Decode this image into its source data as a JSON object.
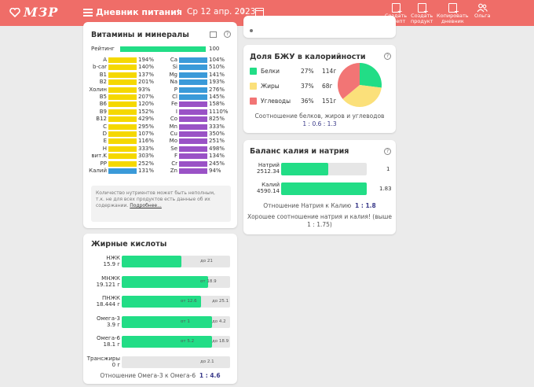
{
  "header": {
    "logo_text": "МЗР",
    "title": "Дневник питания",
    "date": "Ср 12 апр. 2023",
    "actions": [
      {
        "label_line1": "Создать",
        "label_line2": "рецепт"
      },
      {
        "label_line1": "Создать",
        "label_line2": "продукт"
      },
      {
        "label_line1": "Копировать",
        "label_line2": "дневник"
      },
      {
        "label_line1": "Ольга",
        "label_line2": ""
      }
    ],
    "bar_color": "#ef6d68"
  },
  "vitamins": {
    "title": "Витамины и минералы",
    "rating_label": "Рейтинг",
    "rating_value": "100",
    "left": [
      {
        "name": "A",
        "value": "194%",
        "color": "#f5d800"
      },
      {
        "name": "b-car",
        "value": "140%",
        "color": "#f5d800"
      },
      {
        "name": "B1",
        "value": "137%",
        "color": "#f5d800"
      },
      {
        "name": "B2",
        "value": "201%",
        "color": "#f5d800"
      },
      {
        "name": "Холин",
        "value": "93%",
        "color": "#f5d800"
      },
      {
        "name": "B5",
        "value": "207%",
        "color": "#f5d800"
      },
      {
        "name": "B6",
        "value": "120%",
        "color": "#f5d800"
      },
      {
        "name": "B9",
        "value": "152%",
        "color": "#f5d800"
      },
      {
        "name": "B12",
        "value": "429%",
        "color": "#f5d800"
      },
      {
        "name": "C",
        "value": "295%",
        "color": "#f5d800"
      },
      {
        "name": "D",
        "value": "107%",
        "color": "#f5d800"
      },
      {
        "name": "E",
        "value": "116%",
        "color": "#f5d800"
      },
      {
        "name": "H",
        "value": "333%",
        "color": "#f5d800"
      },
      {
        "name": "вит.K",
        "value": "303%",
        "color": "#f5d800"
      },
      {
        "name": "PP",
        "value": "252%",
        "color": "#f5d800"
      },
      {
        "name": "Калий",
        "value": "131%",
        "color": "#3a9ad9"
      }
    ],
    "right": [
      {
        "name": "Ca",
        "value": "104%",
        "color": "#3a9ad9"
      },
      {
        "name": "Si",
        "value": "510%",
        "color": "#3a9ad9"
      },
      {
        "name": "Mg",
        "value": "141%",
        "color": "#3a9ad9"
      },
      {
        "name": "Na",
        "value": "193%",
        "color": "#3a9ad9"
      },
      {
        "name": "P",
        "value": "276%",
        "color": "#3a9ad9"
      },
      {
        "name": "Cl",
        "value": "145%",
        "color": "#3a9ad9"
      },
      {
        "name": "Fe",
        "value": "158%",
        "color": "#9a52c6"
      },
      {
        "name": "I",
        "value": "1110%",
        "color": "#9a52c6"
      },
      {
        "name": "Co",
        "value": "825%",
        "color": "#9a52c6"
      },
      {
        "name": "Mn",
        "value": "333%",
        "color": "#9a52c6"
      },
      {
        "name": "Cu",
        "value": "350%",
        "color": "#9a52c6"
      },
      {
        "name": "Mo",
        "value": "251%",
        "color": "#9a52c6"
      },
      {
        "name": "Se",
        "value": "498%",
        "color": "#9a52c6"
      },
      {
        "name": "F",
        "value": "134%",
        "color": "#9a52c6"
      },
      {
        "name": "Cr",
        "value": "245%",
        "color": "#9a52c6"
      },
      {
        "name": "Zn",
        "value": "94%",
        "color": "#9a52c6"
      }
    ],
    "note_line1": "Количество нутриентов может быть неполным,",
    "note_line2": "т.к. не для всех продуктов есть данные об их",
    "note_line3": "содержании.",
    "note_link": "Подробнее..."
  },
  "fatty_acids": {
    "title": "Жирные кислоты",
    "rows": [
      {
        "name": "НЖК",
        "amount": "15.9 г",
        "from": "",
        "to": "до 21",
        "fill": 0.55
      },
      {
        "name": "МНЖК",
        "amount": "19.121 г",
        "from": "от 18.9",
        "to": "",
        "fill": 0.8
      },
      {
        "name": "ПНЖК",
        "amount": "18.444 г",
        "from": "от 12.6",
        "to": "до 25.1",
        "fill": 0.73
      },
      {
        "name": "Омега-3",
        "amount": "3.9 г",
        "from": "от 1",
        "to": "до 4.2",
        "fill": 0.83
      },
      {
        "name": "Омега-6",
        "amount": "18.1 г",
        "from": "от 5.2",
        "to": "до 18.9",
        "fill": 0.83
      },
      {
        "name": "Трансжиры",
        "amount": "0 г",
        "from": "",
        "to": "до 2.1",
        "fill": 0.0
      }
    ],
    "ratio_label": "Отношение Омега-3 к Омега-6",
    "ratio_value": "1 : 4.6"
  },
  "bju": {
    "title": "Доля БЖУ в калорийности",
    "items": [
      {
        "name": "Белки",
        "percent": "27%",
        "grams": "114г",
        "color": "#22dd86",
        "share": 27
      },
      {
        "name": "Жиры",
        "percent": "37%",
        "grams": "68г",
        "color": "#fbe07a",
        "share": 37
      },
      {
        "name": "Углеводы",
        "percent": "36%",
        "grams": "151г",
        "color": "#f27575",
        "share": 36
      }
    ],
    "ratio_line1": "Соотношение белков, жиров и углеводов",
    "ratio_line2": "1 : 0.6 : 1.3"
  },
  "kna": {
    "title": "Баланс калия и натрия",
    "rows": [
      {
        "name": "Натрий",
        "amount": "2512.34",
        "side_value": "1",
        "fill": 0.55
      },
      {
        "name": "Калий",
        "amount": "4590.14",
        "side_value": "1.83",
        "fill": 1.0
      }
    ],
    "ratio_label": "Отношение Натрия к Калию",
    "ratio_value": "1 : 1.8",
    "comment_line1": "Хорошее соотношение натрия и калия! (выше",
    "comment_line2": "1 : 1.75)"
  }
}
